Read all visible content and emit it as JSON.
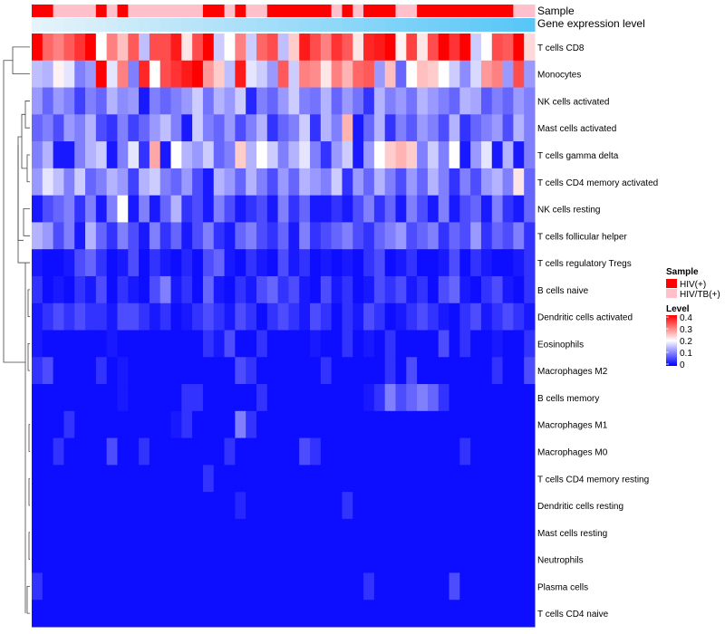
{
  "chart_data": {
    "type": "heatmap",
    "title": "",
    "annotations": {
      "sample_label": "Sample",
      "gene_label": "Gene expression level",
      "sample_groups": [
        "HIV(+)",
        "HIV(+)",
        "HIV/TB(+)",
        "HIV/TB(+)",
        "HIV/TB(+)",
        "HIV/TB(+)",
        "HIV(+)",
        "HIV/TB(+)",
        "HIV(+)",
        "HIV/TB(+)",
        "HIV/TB(+)",
        "HIV/TB(+)",
        "HIV/TB(+)",
        "HIV/TB(+)",
        "HIV/TB(+)",
        "HIV/TB(+)",
        "HIV(+)",
        "HIV(+)",
        "HIV/TB(+)",
        "HIV(+)",
        "HIV/TB(+)",
        "HIV/TB(+)",
        "HIV(+)",
        "HIV(+)",
        "HIV(+)",
        "HIV(+)",
        "HIV(+)",
        "HIV(+)",
        "HIV/TB(+)",
        "HIV(+)",
        "HIV/TB(+)",
        "HIV(+)",
        "HIV(+)",
        "HIV(+)",
        "HIV/TB(+)",
        "HIV/TB(+)",
        "HIV(+)",
        "HIV(+)",
        "HIV(+)",
        "HIV(+)",
        "HIV(+)",
        "HIV(+)",
        "HIV(+)",
        "HIV(+)",
        "HIV(+)",
        "HIV/TB(+)",
        "HIV/TB(+)"
      ],
      "gene_level": [
        0.02,
        0.04,
        0.06,
        0.08,
        0.1,
        0.12,
        0.14,
        0.16,
        0.18,
        0.2,
        0.22,
        0.24,
        0.26,
        0.28,
        0.3,
        0.32,
        0.34,
        0.36,
        0.38,
        0.4,
        0.42,
        0.44,
        0.46,
        0.48,
        0.5,
        0.52,
        0.54,
        0.56,
        0.58,
        0.6,
        0.62,
        0.64,
        0.66,
        0.68,
        0.7,
        0.72,
        0.74,
        0.76,
        0.78,
        0.8,
        0.82,
        0.84,
        0.86,
        0.88,
        0.9,
        0.92,
        0.94
      ]
    },
    "rows": [
      "T cells CD8",
      "Monocytes",
      "NK cells activated",
      "Mast cells activated",
      "T cells gamma delta",
      "T cells CD4 memory activated",
      "NK cells resting",
      "T cells follicular helper",
      "T cells regulatory  Tregs",
      "B cells naive",
      "Dendritic cells activated",
      "Eosinophils",
      "Macrophages M2",
      "B cells memory",
      "Macrophages M1",
      "Macrophages M0",
      "T cells CD4 memory resting",
      "Dendritic cells resting",
      "Mast cells resting",
      "Neutrophils",
      "Plasma cells",
      "T cells CD4 naive"
    ],
    "values": [
      [
        0.4,
        0.32,
        0.3,
        0.33,
        0.36,
        0.4,
        0.2,
        0.3,
        0.25,
        0.33,
        0.15,
        0.34,
        0.34,
        0.38,
        0.22,
        0.34,
        0.4,
        0.16,
        0.2,
        0.3,
        0.16,
        0.32,
        0.34,
        0.15,
        0.24,
        0.38,
        0.34,
        0.3,
        0.36,
        0.33,
        0.22,
        0.37,
        0.38,
        0.4,
        0.21,
        0.35,
        0.22,
        0.34,
        0.4,
        0.36,
        0.4,
        0.16,
        0.2,
        0.34,
        0.33,
        0.4,
        0.23
      ],
      [
        0.15,
        0.14,
        0.21,
        0.18,
        0.1,
        0.12,
        0.4,
        0.18,
        0.3,
        0.1,
        0.37,
        0.2,
        0.34,
        0.36,
        0.38,
        0.4,
        0.28,
        0.24,
        0.15,
        0.38,
        0.18,
        0.16,
        0.12,
        0.33,
        0.16,
        0.3,
        0.29,
        0.22,
        0.3,
        0.26,
        0.32,
        0.33,
        0.12,
        0.25,
        0.08,
        0.2,
        0.25,
        0.24,
        0.2,
        0.16,
        0.11,
        0.17,
        0.28,
        0.3,
        0.12,
        0.34,
        0.12
      ],
      [
        0.12,
        0.08,
        0.12,
        0.1,
        0.05,
        0.1,
        0.08,
        0.14,
        0.11,
        0.12,
        0.02,
        0.1,
        0.08,
        0.1,
        0.12,
        0.16,
        0.09,
        0.14,
        0.12,
        0.16,
        0.03,
        0.1,
        0.08,
        0.12,
        0.16,
        0.1,
        0.09,
        0.14,
        0.08,
        0.12,
        0.09,
        0.04,
        0.14,
        0.1,
        0.12,
        0.09,
        0.14,
        0.12,
        0.1,
        0.08,
        0.14,
        0.13,
        0.07,
        0.1,
        0.08,
        0.12,
        0.1
      ],
      [
        0.08,
        0.1,
        0.06,
        0.12,
        0.1,
        0.14,
        0.06,
        0.04,
        0.1,
        0.05,
        0.08,
        0.12,
        0.15,
        0.1,
        0.02,
        0.16,
        0.1,
        0.08,
        0.12,
        0.06,
        0.1,
        0.14,
        0.04,
        0.08,
        0.1,
        0.16,
        0.04,
        0.14,
        0.1,
        0.26,
        0.02,
        0.08,
        0.14,
        0.04,
        0.1,
        0.07,
        0.12,
        0.1,
        0.06,
        0.14,
        0.04,
        0.08,
        0.1,
        0.12,
        0.06,
        0.14,
        0.1
      ],
      [
        0.1,
        0.14,
        0.02,
        0.02,
        0.1,
        0.14,
        0.16,
        0.02,
        0.1,
        0.18,
        0.04,
        0.27,
        0.02,
        0.2,
        0.14,
        0.12,
        0.16,
        0.08,
        0.1,
        0.24,
        0.14,
        0.2,
        0.16,
        0.1,
        0.14,
        0.18,
        0.1,
        0.04,
        0.12,
        0.16,
        0.02,
        0.12,
        0.2,
        0.24,
        0.26,
        0.24,
        0.1,
        0.16,
        0.1,
        0.2,
        0.02,
        0.12,
        0.18,
        0.02,
        0.14,
        0.02,
        0.1
      ],
      [
        0.12,
        0.18,
        0.15,
        0.1,
        0.16,
        0.08,
        0.1,
        0.14,
        0.12,
        0.05,
        0.14,
        0.16,
        0.1,
        0.08,
        0.12,
        0.06,
        0.02,
        0.14,
        0.12,
        0.08,
        0.14,
        0.1,
        0.06,
        0.12,
        0.08,
        0.14,
        0.12,
        0.1,
        0.16,
        0.04,
        0.12,
        0.08,
        0.14,
        0.1,
        0.06,
        0.12,
        0.08,
        0.14,
        0.1,
        0.04,
        0.1,
        0.06,
        0.12,
        0.14,
        0.1,
        0.22,
        0.08
      ],
      [
        0.02,
        0.06,
        0.08,
        0.1,
        0.04,
        0.1,
        0.02,
        0.1,
        0.2,
        0.02,
        0.1,
        0.02,
        0.08,
        0.14,
        0.04,
        0.06,
        0.02,
        0.1,
        0.06,
        0.02,
        0.04,
        0.06,
        0.02,
        0.1,
        0.04,
        0.08,
        0.02,
        0.02,
        0.04,
        0.02,
        0.06,
        0.1,
        0.04,
        0.08,
        0.02,
        0.1,
        0.06,
        0.02,
        0.1,
        0.02,
        0.06,
        0.08,
        0.02,
        0.1,
        0.04,
        0.02,
        0.08
      ],
      [
        0.14,
        0.12,
        0.06,
        0.1,
        0.02,
        0.14,
        0.08,
        0.04,
        0.1,
        0.06,
        0.02,
        0.1,
        0.04,
        0.08,
        0.02,
        0.06,
        0.1,
        0.04,
        0.02,
        0.08,
        0.1,
        0.06,
        0.04,
        0.08,
        0.02,
        0.1,
        0.04,
        0.06,
        0.08,
        0.1,
        0.06,
        0.04,
        0.08,
        0.1,
        0.12,
        0.06,
        0.08,
        0.1,
        0.04,
        0.08,
        0.06,
        0.12,
        0.04,
        0.08,
        0.06,
        0.1,
        0.04
      ],
      [
        0.02,
        0.01,
        0.01,
        0.02,
        0.06,
        0.08,
        0.04,
        0.01,
        0.02,
        0.06,
        0.01,
        0.04,
        0.02,
        0.01,
        0.03,
        0.01,
        0.06,
        0.08,
        0.02,
        0.01,
        0.04,
        0.02,
        0.01,
        0.06,
        0.02,
        0.04,
        0.01,
        0.02,
        0.01,
        0.02,
        0.01,
        0.04,
        0.06,
        0.01,
        0.02,
        0.04,
        0.01,
        0.01,
        0.02,
        0.06,
        0.01,
        0.04,
        0.02,
        0.01,
        0.01,
        0.02,
        0.04
      ],
      [
        0.04,
        0.01,
        0.02,
        0.01,
        0.04,
        0.02,
        0.06,
        0.01,
        0.04,
        0.02,
        0.01,
        0.06,
        0.1,
        0.02,
        0.04,
        0.01,
        0.08,
        0.02,
        0.01,
        0.04,
        0.02,
        0.06,
        0.08,
        0.04,
        0.06,
        0.02,
        0.01,
        0.06,
        0.02,
        0.04,
        0.01,
        0.02,
        0.06,
        0.04,
        0.06,
        0.02,
        0.04,
        0.01,
        0.06,
        0.08,
        0.02,
        0.01,
        0.04,
        0.06,
        0.02,
        0.01,
        0.04
      ],
      [
        0.02,
        0.04,
        0.06,
        0.04,
        0.06,
        0.04,
        0.04,
        0.02,
        0.06,
        0.06,
        0.04,
        0.02,
        0.04,
        0.01,
        0.02,
        0.04,
        0.06,
        0.04,
        0.02,
        0.06,
        0.04,
        0.01,
        0.04,
        0.06,
        0.04,
        0.02,
        0.06,
        0.04,
        0.01,
        0.04,
        0.02,
        0.06,
        0.04,
        0.01,
        0.02,
        0.04,
        0.06,
        0.04,
        0.02,
        0.01,
        0.04,
        0.06,
        0.02,
        0.04,
        0.06,
        0.04,
        0.02
      ],
      [
        0.02,
        0.01,
        0.01,
        0.01,
        0.01,
        0.01,
        0.01,
        0.02,
        0.01,
        0.01,
        0.01,
        0.01,
        0.01,
        0.01,
        0.01,
        0.01,
        0.04,
        0.02,
        0.06,
        0.01,
        0.01,
        0.04,
        0.01,
        0.01,
        0.01,
        0.01,
        0.02,
        0.01,
        0.01,
        0.04,
        0.01,
        0.02,
        0.01,
        0.04,
        0.01,
        0.01,
        0.01,
        0.01,
        0.06,
        0.01,
        0.04,
        0.01,
        0.01,
        0.02,
        0.01,
        0.01,
        0.04
      ],
      [
        0.04,
        0.06,
        0.01,
        0.01,
        0.01,
        0.01,
        0.04,
        0.01,
        0.02,
        0.01,
        0.01,
        0.01,
        0.01,
        0.01,
        0.01,
        0.01,
        0.01,
        0.01,
        0.01,
        0.06,
        0.04,
        0.01,
        0.01,
        0.01,
        0.01,
        0.01,
        0.01,
        0.04,
        0.01,
        0.01,
        0.01,
        0.01,
        0.01,
        0.04,
        0.01,
        0.06,
        0.01,
        0.01,
        0.01,
        0.01,
        0.01,
        0.01,
        0.01,
        0.04,
        0.01,
        0.01,
        0.06
      ],
      [
        0.01,
        0.01,
        0.01,
        0.01,
        0.01,
        0.01,
        0.01,
        0.01,
        0.02,
        0.01,
        0.01,
        0.01,
        0.01,
        0.01,
        0.04,
        0.04,
        0.01,
        0.01,
        0.01,
        0.01,
        0.01,
        0.04,
        0.01,
        0.01,
        0.01,
        0.01,
        0.01,
        0.01,
        0.01,
        0.01,
        0.01,
        0.02,
        0.04,
        0.1,
        0.06,
        0.08,
        0.1,
        0.08,
        0.04,
        0.01,
        0.01,
        0.01,
        0.01,
        0.01,
        0.01,
        0.01,
        0.01
      ],
      [
        0.01,
        0.01,
        0.01,
        0.04,
        0.01,
        0.01,
        0.01,
        0.01,
        0.01,
        0.01,
        0.01,
        0.01,
        0.01,
        0.02,
        0.04,
        0.01,
        0.01,
        0.01,
        0.01,
        0.1,
        0.04,
        0.01,
        0.01,
        0.01,
        0.01,
        0.01,
        0.01,
        0.01,
        0.01,
        0.01,
        0.01,
        0.01,
        0.01,
        0.01,
        0.01,
        0.01,
        0.01,
        0.01,
        0.01,
        0.01,
        0.01,
        0.01,
        0.01,
        0.01,
        0.01,
        0.01,
        0.01
      ],
      [
        0.01,
        0.01,
        0.04,
        0.01,
        0.01,
        0.01,
        0.01,
        0.06,
        0.01,
        0.01,
        0.04,
        0.01,
        0.01,
        0.01,
        0.01,
        0.01,
        0.01,
        0.01,
        0.04,
        0.01,
        0.01,
        0.01,
        0.01,
        0.01,
        0.01,
        0.06,
        0.04,
        0.01,
        0.01,
        0.01,
        0.01,
        0.01,
        0.01,
        0.01,
        0.01,
        0.01,
        0.01,
        0.01,
        0.01,
        0.01,
        0.04,
        0.01,
        0.01,
        0.01,
        0.01,
        0.01,
        0.01
      ],
      [
        0.01,
        0.01,
        0.01,
        0.01,
        0.01,
        0.01,
        0.01,
        0.01,
        0.01,
        0.01,
        0.01,
        0.01,
        0.01,
        0.01,
        0.01,
        0.01,
        0.04,
        0.01,
        0.01,
        0.01,
        0.01,
        0.01,
        0.01,
        0.01,
        0.01,
        0.01,
        0.01,
        0.01,
        0.01,
        0.01,
        0.01,
        0.01,
        0.01,
        0.01,
        0.01,
        0.01,
        0.01,
        0.01,
        0.01,
        0.01,
        0.01,
        0.01,
        0.01,
        0.01,
        0.01,
        0.01,
        0.01
      ],
      [
        0.01,
        0.01,
        0.01,
        0.01,
        0.01,
        0.01,
        0.01,
        0.01,
        0.01,
        0.01,
        0.01,
        0.01,
        0.01,
        0.01,
        0.01,
        0.01,
        0.01,
        0.01,
        0.01,
        0.03,
        0.01,
        0.01,
        0.01,
        0.01,
        0.01,
        0.01,
        0.01,
        0.01,
        0.01,
        0.04,
        0.01,
        0.01,
        0.01,
        0.01,
        0.01,
        0.01,
        0.01,
        0.01,
        0.01,
        0.01,
        0.01,
        0.01,
        0.01,
        0.01,
        0.01,
        0.01,
        0.01
      ],
      [
        0.01,
        0.01,
        0.01,
        0.01,
        0.01,
        0.01,
        0.01,
        0.01,
        0.01,
        0.01,
        0.01,
        0.01,
        0.01,
        0.01,
        0.01,
        0.01,
        0.01,
        0.01,
        0.01,
        0.01,
        0.01,
        0.01,
        0.01,
        0.01,
        0.01,
        0.01,
        0.01,
        0.01,
        0.01,
        0.01,
        0.01,
        0.01,
        0.01,
        0.01,
        0.01,
        0.01,
        0.01,
        0.01,
        0.01,
        0.01,
        0.01,
        0.01,
        0.01,
        0.01,
        0.01,
        0.01,
        0.01
      ],
      [
        0.01,
        0.01,
        0.01,
        0.01,
        0.01,
        0.01,
        0.01,
        0.01,
        0.01,
        0.01,
        0.01,
        0.01,
        0.01,
        0.01,
        0.01,
        0.01,
        0.01,
        0.01,
        0.01,
        0.01,
        0.01,
        0.01,
        0.01,
        0.01,
        0.01,
        0.01,
        0.01,
        0.01,
        0.01,
        0.01,
        0.01,
        0.01,
        0.01,
        0.01,
        0.01,
        0.01,
        0.01,
        0.01,
        0.01,
        0.01,
        0.01,
        0.01,
        0.01,
        0.01,
        0.01,
        0.01,
        0.01
      ],
      [
        0.04,
        0.01,
        0.01,
        0.01,
        0.01,
        0.01,
        0.01,
        0.01,
        0.01,
        0.01,
        0.01,
        0.01,
        0.01,
        0.01,
        0.01,
        0.01,
        0.01,
        0.01,
        0.01,
        0.01,
        0.01,
        0.01,
        0.01,
        0.01,
        0.01,
        0.01,
        0.01,
        0.01,
        0.01,
        0.01,
        0.01,
        0.04,
        0.01,
        0.01,
        0.01,
        0.01,
        0.01,
        0.01,
        0.01,
        0.06,
        0.01,
        0.01,
        0.01,
        0.01,
        0.01,
        0.01,
        0.01
      ],
      [
        0.01,
        0.01,
        0.01,
        0.01,
        0.01,
        0.01,
        0.01,
        0.01,
        0.01,
        0.01,
        0.01,
        0.01,
        0.01,
        0.01,
        0.01,
        0.01,
        0.01,
        0.01,
        0.01,
        0.01,
        0.01,
        0.01,
        0.01,
        0.01,
        0.01,
        0.01,
        0.01,
        0.01,
        0.01,
        0.01,
        0.01,
        0.01,
        0.01,
        0.01,
        0.01,
        0.01,
        0.01,
        0.01,
        0.01,
        0.01,
        0.01,
        0.01,
        0.01,
        0.01,
        0.01,
        0.01,
        0.01
      ]
    ],
    "color_scale": {
      "min": 0,
      "mid": 0.2,
      "max": 0.4,
      "low_color": "#0000ff",
      "mid_color": "#ffffff",
      "high_color": "#ff0000"
    },
    "legend": {
      "sample_title": "Sample",
      "sample_items": [
        {
          "label": "HIV(+)",
          "color": "#ff0000"
        },
        {
          "label": "HIV/TB(+)",
          "color": "#ffc0cb"
        }
      ],
      "level_title": "Level",
      "level_ticks": [
        "0.4",
        "0.3",
        "0.2",
        "0.1",
        "0"
      ],
      "placement": "right"
    },
    "gene_colors": {
      "low": "#e8f4fa",
      "high": "#4fc3f7"
    }
  }
}
